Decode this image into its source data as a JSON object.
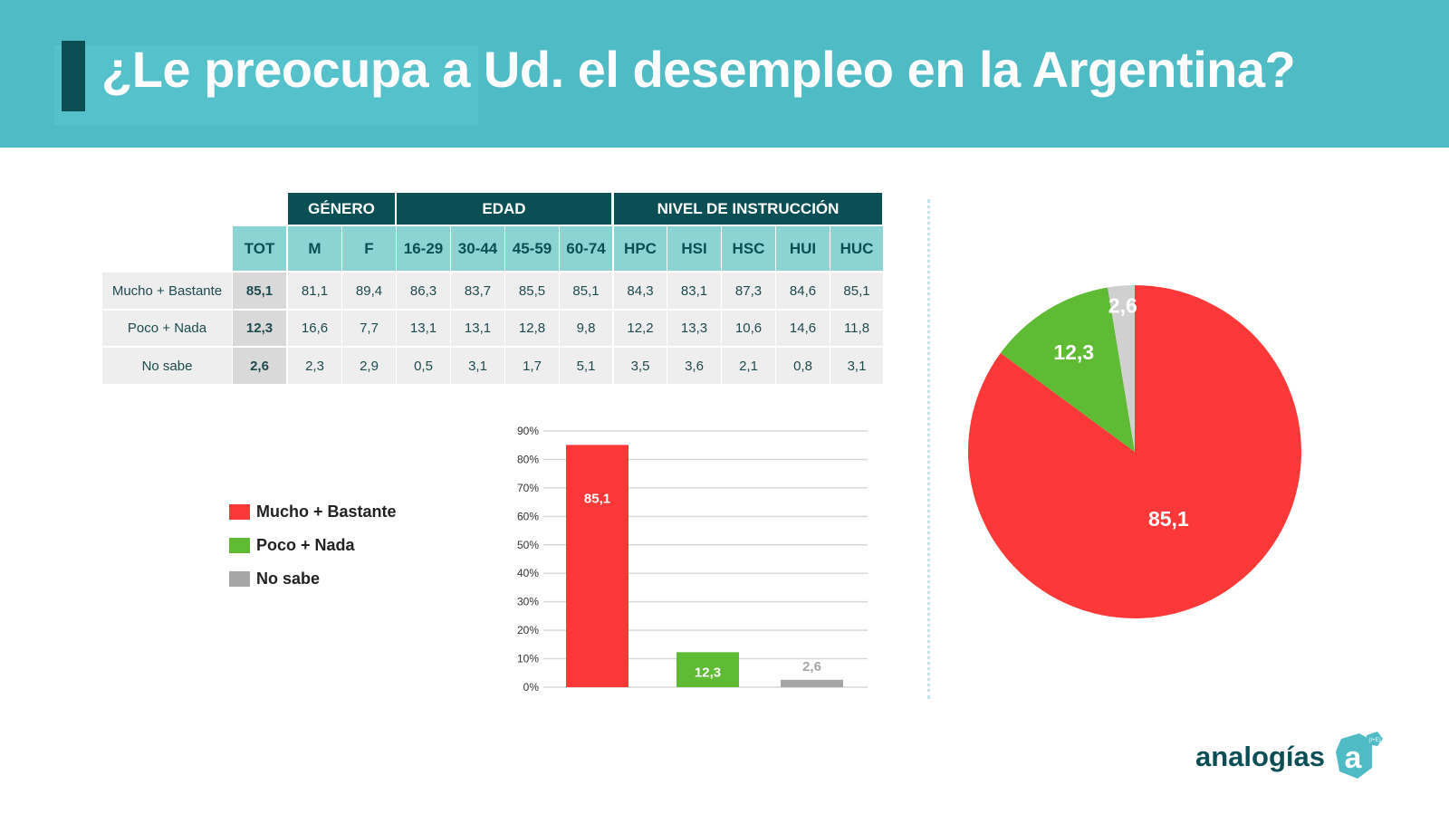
{
  "title": "¿Le preocupa a Ud. el desempleo en la Argentina?",
  "table": {
    "groups": [
      "GÉNERO",
      "EDAD",
      "NIVEL DE INSTRUCCIÓN"
    ],
    "columns": [
      "TOT",
      "M",
      "F",
      "16-29",
      "30-44",
      "45-59",
      "60-74",
      "HPC",
      "HSI",
      "HSC",
      "HUI",
      "HUC"
    ],
    "rows": [
      {
        "label": "Mucho + Bastante",
        "values": [
          "85,1",
          "81,1",
          "89,4",
          "86,3",
          "83,7",
          "85,5",
          "85,1",
          "84,3",
          "83,1",
          "87,3",
          "84,6",
          "85,1"
        ]
      },
      {
        "label": "Poco + Nada",
        "values": [
          "12,3",
          "16,6",
          "7,7",
          "13,1",
          "13,1",
          "12,8",
          "9,8",
          "12,2",
          "13,3",
          "10,6",
          "14,6",
          "11,8"
        ]
      },
      {
        "label": "No sabe",
        "values": [
          "2,6",
          "2,3",
          "2,9",
          "0,5",
          "3,1",
          "1,7",
          "5,1",
          "3,5",
          "3,6",
          "2,1",
          "0,8",
          "3,1"
        ]
      }
    ]
  },
  "colors": {
    "mucho": "#fd3838",
    "poco": "#5fbb33",
    "nosabe": "#a6a6a6",
    "pie_nosabe": "#d0d0d0"
  },
  "chart_data": [
    {
      "type": "bar",
      "categories": [
        "Mucho + Bastante",
        "Poco + Nada",
        "No sabe"
      ],
      "values": [
        85.1,
        12.3,
        2.6
      ],
      "labels": [
        "85,1",
        "12,3",
        "2,6"
      ],
      "ylim": [
        0,
        90
      ],
      "yticks": [
        "0%",
        "10%",
        "20%",
        "30%",
        "40%",
        "50%",
        "60%",
        "70%",
        "80%",
        "90%"
      ],
      "grid": true,
      "legend": [
        "Mucho + Bastante",
        "Poco + Nada",
        "No sabe"
      ]
    },
    {
      "type": "pie",
      "categories": [
        "Mucho + Bastante",
        "Poco + Nada",
        "No sabe"
      ],
      "values": [
        85.1,
        12.3,
        2.6
      ],
      "labels": [
        "85,1",
        "12,3",
        "2,6"
      ]
    }
  ],
  "logo": {
    "text": "analogías",
    "mark": "a",
    "sup": "(I+E)"
  }
}
